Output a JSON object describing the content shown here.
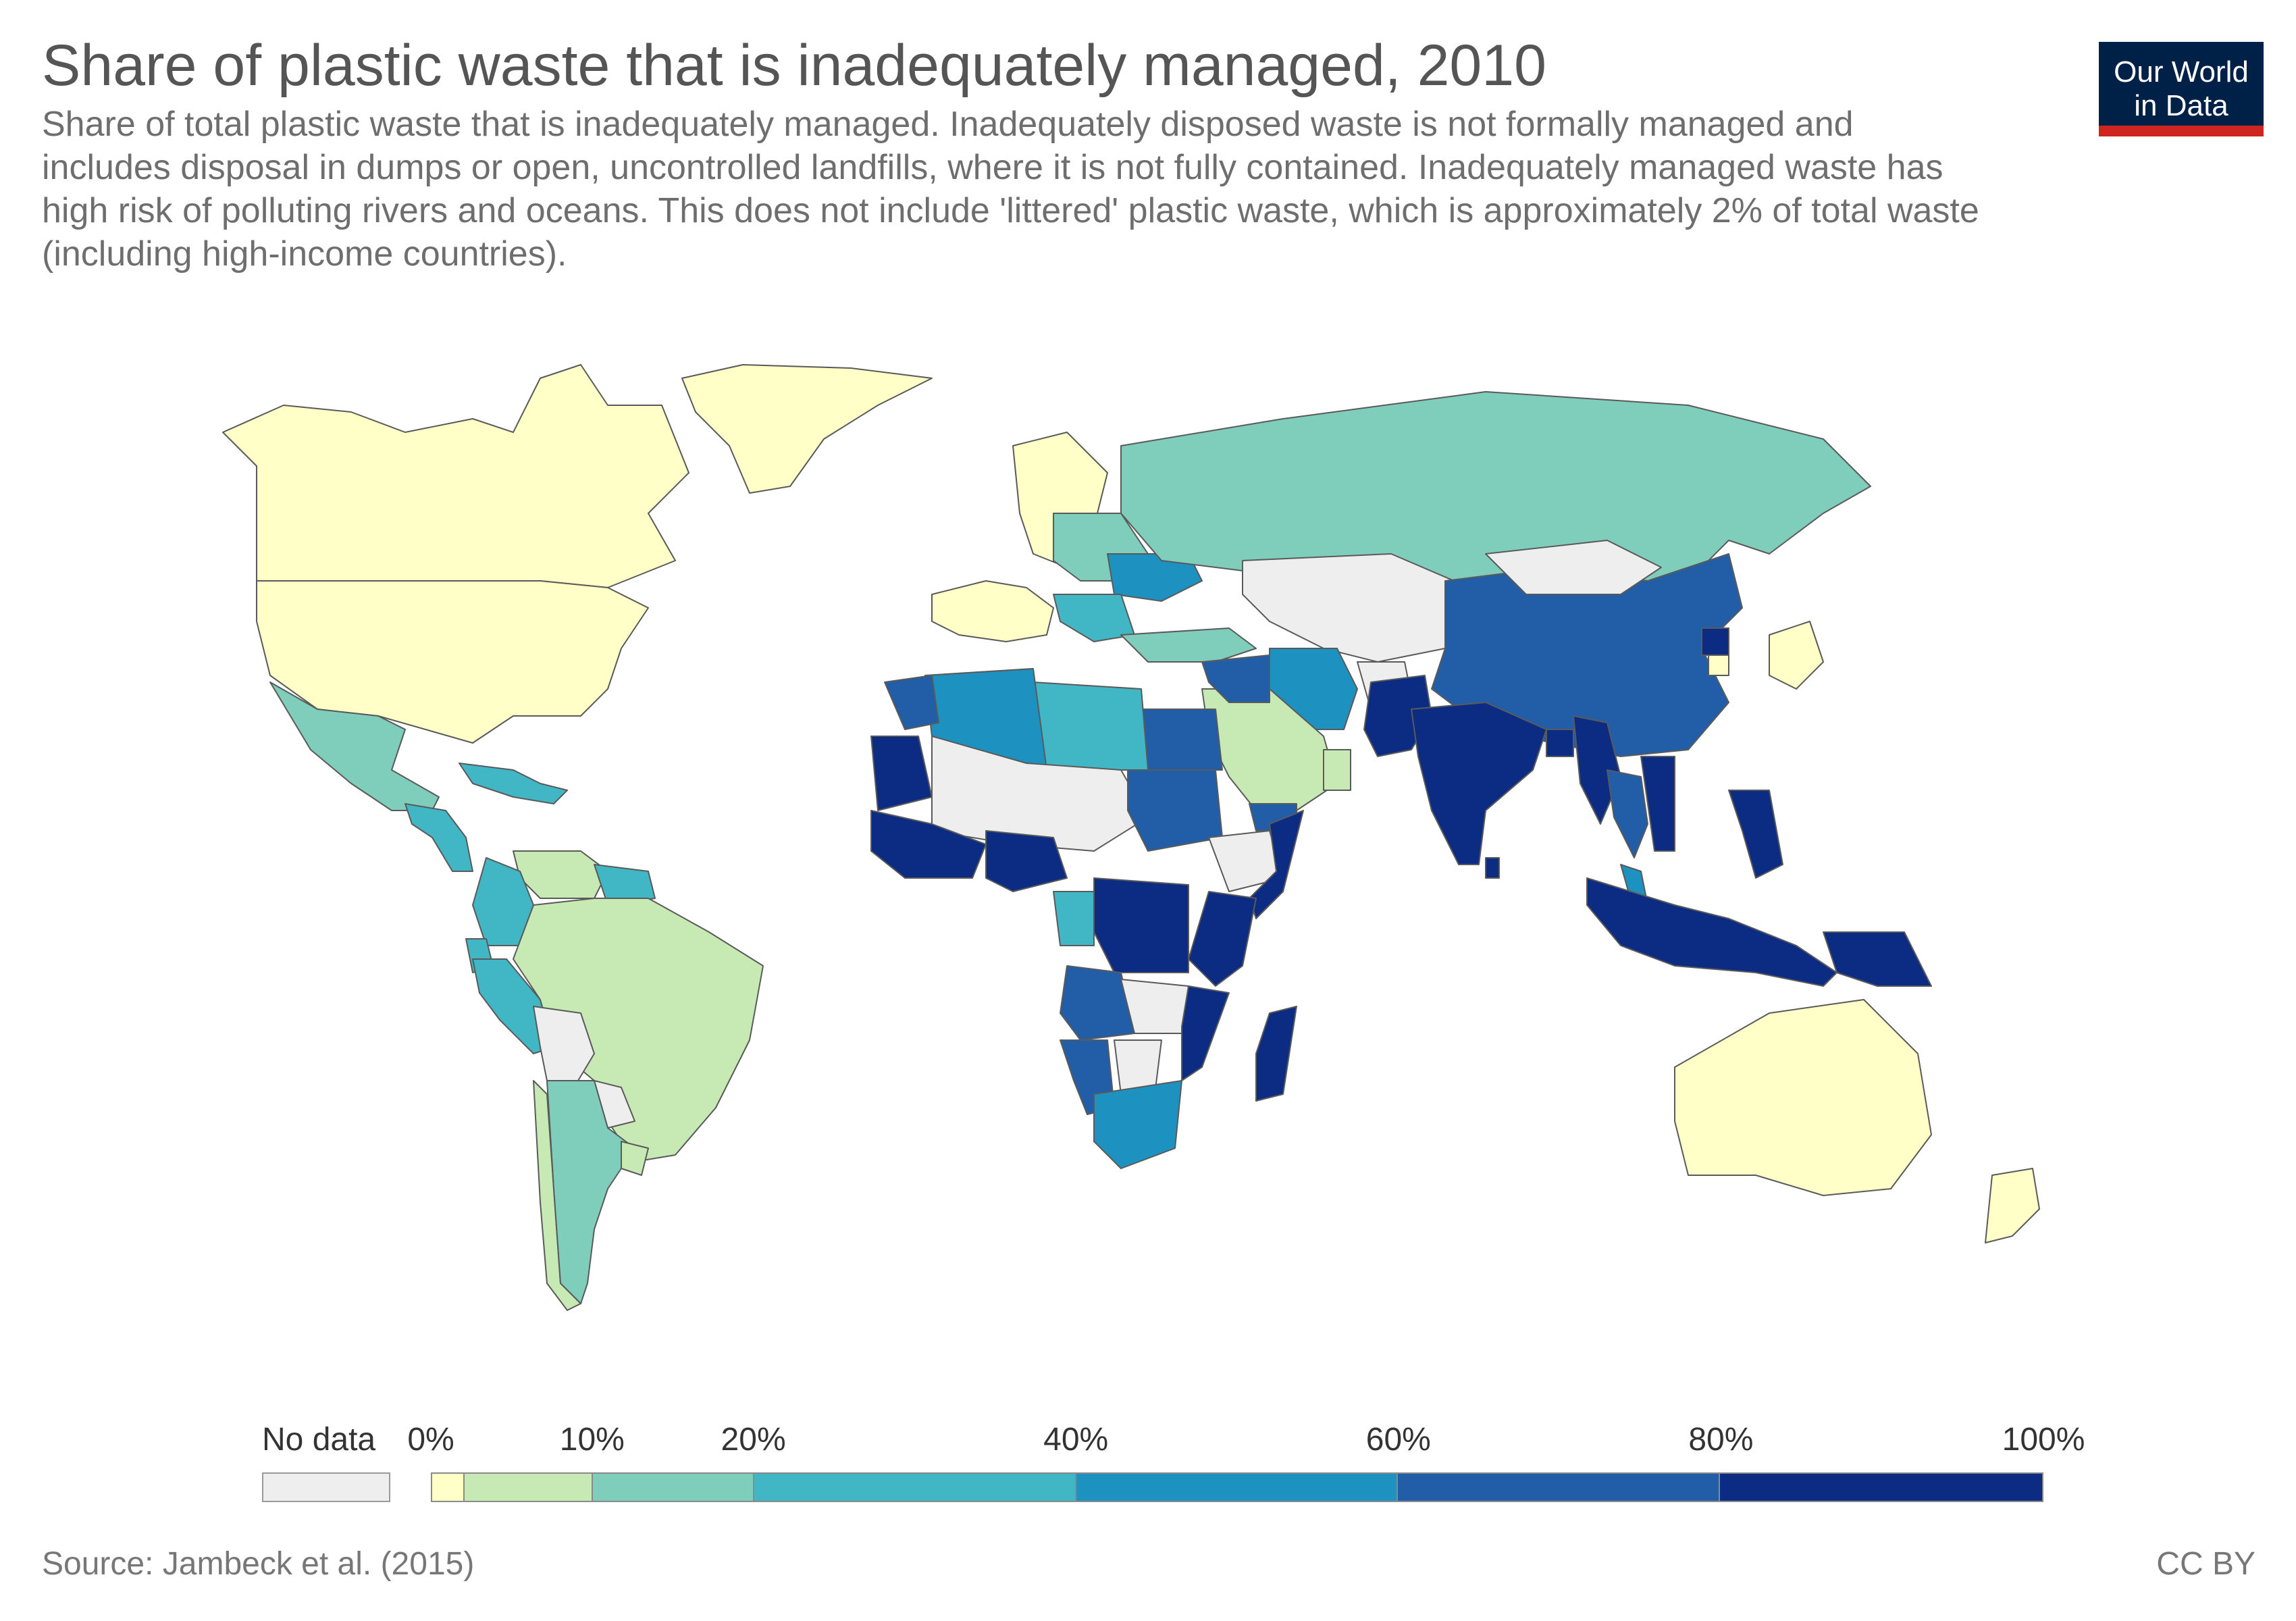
{
  "title": "Share of plastic waste that is inadequately managed, 2010",
  "subtitle": "Share of total plastic waste that is inadequately managed. Inadequately disposed waste is not formally managed and includes disposal in dumps or open, uncontrolled landfills, where it is not fully contained. Inadequately managed waste has high risk of polluting rivers and oceans. This does not include 'littered' plastic waste, which is approximately 2% of total waste (including high-income countries).",
  "logo": {
    "line1": "Our World",
    "line2": "in Data"
  },
  "footer": {
    "source": "Source: Jambeck et al. (2015)",
    "license": "CC BY"
  },
  "legend": {
    "no_data_label": "No data",
    "no_data_color": "#eeeeee",
    "bins": [
      {
        "from": 0,
        "to": 2,
        "color": "#ffffc8"
      },
      {
        "from": 2,
        "to": 10,
        "color": "#c7e9b4"
      },
      {
        "from": 10,
        "to": 20,
        "color": "#7fcdbb"
      },
      {
        "from": 20,
        "to": 40,
        "color": "#41b6c4"
      },
      {
        "from": 40,
        "to": 60,
        "color": "#1d91c0"
      },
      {
        "from": 60,
        "to": 80,
        "color": "#225ea8"
      },
      {
        "from": 80,
        "to": 100,
        "color": "#0c2c84"
      }
    ],
    "tick_labels": [
      "0%",
      "10%",
      "20%",
      "40%",
      "60%",
      "80%",
      "100%"
    ],
    "tick_values": [
      0,
      10,
      20,
      40,
      60,
      80,
      100
    ]
  },
  "chart_data": {
    "type": "choropleth",
    "title": "Share of plastic waste that is inadequately managed, 2010",
    "unit": "%",
    "year": 2010,
    "regions": [
      {
        "name": "Canada",
        "bin": "0-2%"
      },
      {
        "name": "United States",
        "bin": "0-2%"
      },
      {
        "name": "Greenland",
        "bin": "0-2%"
      },
      {
        "name": "Mexico",
        "bin": "10-20%"
      },
      {
        "name": "Central America",
        "bin": "20-60%"
      },
      {
        "name": "Caribbean",
        "bin": "20-40%"
      },
      {
        "name": "Venezuela",
        "bin": "2-10%"
      },
      {
        "name": "Colombia",
        "bin": "20-40%"
      },
      {
        "name": "Ecuador",
        "bin": "20-40%"
      },
      {
        "name": "Peru",
        "bin": "20-40%"
      },
      {
        "name": "Guyana/Suriname",
        "bin": "20-40%"
      },
      {
        "name": "Brazil",
        "bin": "2-10%"
      },
      {
        "name": "Bolivia",
        "bin": "No data"
      },
      {
        "name": "Paraguay",
        "bin": "No data"
      },
      {
        "name": "Chile",
        "bin": "2-10%"
      },
      {
        "name": "Argentina",
        "bin": "10-20%"
      },
      {
        "name": "Uruguay",
        "bin": "2-10%"
      },
      {
        "name": "Western Europe",
        "bin": "0-2%"
      },
      {
        "name": "Scandinavia",
        "bin": "0-2%"
      },
      {
        "name": "Eastern Europe",
        "bin": "10-20%"
      },
      {
        "name": "Ukraine",
        "bin": "40-60%"
      },
      {
        "name": "Balkans",
        "bin": "20-40%"
      },
      {
        "name": "Russia",
        "bin": "10-20%"
      },
      {
        "name": "Turkey",
        "bin": "10-20%"
      },
      {
        "name": "Kazakhstan / Central Asia",
        "bin": "No data"
      },
      {
        "name": "China",
        "bin": "60-80%"
      },
      {
        "name": "Mongolia",
        "bin": "No data"
      },
      {
        "name": "North Korea",
        "bin": "80-100%"
      },
      {
        "name": "South Korea",
        "bin": "0-2%"
      },
      {
        "name": "Japan",
        "bin": "0-2%"
      },
      {
        "name": "Iran",
        "bin": "40-60%"
      },
      {
        "name": "Afghanistan",
        "bin": "No data"
      },
      {
        "name": "Pakistan",
        "bin": "80-100%"
      },
      {
        "name": "India",
        "bin": "80-100%"
      },
      {
        "name": "Sri Lanka",
        "bin": "80-100%"
      },
      {
        "name": "Bangladesh",
        "bin": "80-100%"
      },
      {
        "name": "Myanmar",
        "bin": "80-100%"
      },
      {
        "name": "Thailand",
        "bin": "60-80%"
      },
      {
        "name": "Vietnam",
        "bin": "80-100%"
      },
      {
        "name": "Malaysia",
        "bin": "40-60%"
      },
      {
        "name": "Philippines",
        "bin": "80-100%"
      },
      {
        "name": "Indonesia",
        "bin": "80-100%"
      },
      {
        "name": "Papua New Guinea",
        "bin": "80-100%"
      },
      {
        "name": "Australia",
        "bin": "0-2%"
      },
      {
        "name": "New Zealand",
        "bin": "0-2%"
      },
      {
        "name": "Saudi Arabia",
        "bin": "2-10%"
      },
      {
        "name": "Yemen",
        "bin": "60-80%"
      },
      {
        "name": "Oman",
        "bin": "2-10%"
      },
      {
        "name": "Iraq / Syria",
        "bin": "60-80%"
      },
      {
        "name": "Egypt",
        "bin": "60-80%"
      },
      {
        "name": "Libya",
        "bin": "20-40%"
      },
      {
        "name": "Algeria",
        "bin": "40-60%"
      },
      {
        "name": "Morocco",
        "bin": "60-80%"
      },
      {
        "name": "Mauritania",
        "bin": "80-100%"
      },
      {
        "name": "Sahel (Mali, Niger, Chad)",
        "bin": "No data"
      },
      {
        "name": "West African coast",
        "bin": "80-100%"
      },
      {
        "name": "Nigeria",
        "bin": "80-100%"
      },
      {
        "name": "Sudan",
        "bin": "60-80%"
      },
      {
        "name": "Ethiopia",
        "bin": "No data"
      },
      {
        "name": "Somalia",
        "bin": "80-100%"
      },
      {
        "name": "Kenya / Tanzania",
        "bin": "80-100%"
      },
      {
        "name": "DR Congo",
        "bin": "80-100%"
      },
      {
        "name": "Gabon / Congo",
        "bin": "20-40%"
      },
      {
        "name": "Angola",
        "bin": "60-80%"
      },
      {
        "name": "Namibia",
        "bin": "60-80%"
      },
      {
        "name": "Zambia",
        "bin": "No data"
      },
      {
        "name": "Botswana",
        "bin": "No data"
      },
      {
        "name": "Mozambique",
        "bin": "80-100%"
      },
      {
        "name": "South Africa",
        "bin": "40-60%"
      },
      {
        "name": "Madagascar",
        "bin": "80-100%"
      }
    ]
  }
}
